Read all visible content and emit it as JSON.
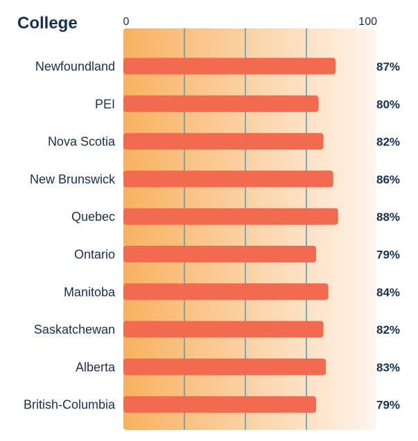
{
  "colors": {
    "bar": "#f26b50",
    "gradient_start": "#f9b160",
    "gradient_end": "#fff4ec",
    "gridline": "#4fa0b8",
    "text": "#15304f"
  },
  "chart_data": {
    "type": "bar",
    "orientation": "horizontal",
    "title": "College",
    "xlim": [
      0,
      100
    ],
    "ticks": [
      {
        "value": 0,
        "label": "0"
      },
      {
        "value": 100,
        "label": "100"
      }
    ],
    "gridlines": [
      25,
      50,
      75
    ],
    "categories": [
      "Newfoundland",
      "PEI",
      "Nova Scotia",
      "New Brunswick",
      "Quebec",
      "Ontario",
      "Manitoba",
      "Saskatchewan",
      "Alberta",
      "British-Columbia"
    ],
    "values": [
      87,
      80,
      82,
      86,
      88,
      79,
      84,
      82,
      83,
      79
    ],
    "value_labels": [
      "87%",
      "80%",
      "82%",
      "86%",
      "88%",
      "79%",
      "84%",
      "82%",
      "83%",
      "79%"
    ],
    "grid": true,
    "legend": "none"
  }
}
